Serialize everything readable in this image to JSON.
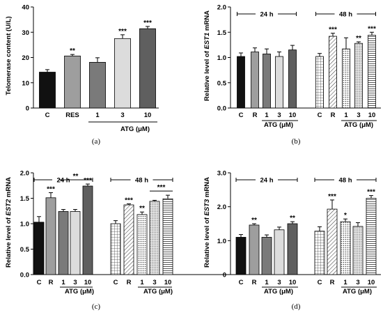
{
  "colors": {
    "black": "#111111",
    "gray_light": "#c4c4c4",
    "gray_mid": "#9e9e9e",
    "gray_dark": "#7a7a7a",
    "gray_very_light": "#dcdcdc",
    "gray_darker": "#5f5f5f",
    "pattern": "#444444"
  },
  "panels": [
    {
      "panel_label": "(a)",
      "ylabel": "Telomerase content  (U/L)",
      "ylabel_italic": "",
      "ylabel_suffix": "",
      "ticks": [
        "0",
        "10",
        "20",
        "30",
        "40"
      ],
      "categories": [
        "C",
        "RES",
        "1",
        "3",
        "10"
      ],
      "group_brackets": [],
      "atg_label": "ATG (μM)"
    },
    {
      "panel_label": "(b)",
      "ylabel": "Relative level of ",
      "ylabel_italic": "EST1",
      "ylabel_suffix": " mRNA",
      "ticks": [
        "0.0",
        "0.5",
        "1.0",
        "1.5",
        "2.0"
      ],
      "categories": [
        "C",
        "R",
        "1",
        "3",
        "10",
        "C",
        "R",
        "1",
        "3",
        "10"
      ],
      "group_brackets": [
        "24 h",
        "48 h"
      ],
      "atg_label": "ATG (μM)"
    },
    {
      "panel_label": "(c)",
      "ylabel": "Relative level of ",
      "ylabel_italic": "EST2",
      "ylabel_suffix": " mRNA",
      "ticks": [
        "0.0",
        "0.5",
        "1.0",
        "1.5",
        "2.0"
      ],
      "categories": [
        "C",
        "R",
        "1",
        "3",
        "10",
        "C",
        "R",
        "1",
        "3",
        "10"
      ],
      "group_brackets": [
        "24 h",
        "48 h"
      ],
      "atg_label": "ATG (μM)"
    },
    {
      "panel_label": "(d)",
      "ylabel": "Relative level of ",
      "ylabel_italic": "EST3",
      "ylabel_suffix": " mRNA",
      "ticks": [
        "0",
        "1.0",
        "2.0",
        "3.0"
      ],
      "categories": [
        "C",
        "R",
        "1",
        "3",
        "10",
        "C",
        "R",
        "1",
        "3",
        "10"
      ],
      "group_brackets": [
        "24 h",
        "48 h"
      ],
      "atg_label": "ATG (μM)"
    }
  ],
  "chart_data": [
    {
      "type": "bar",
      "ylabel": "Telomerase content  (U/L)",
      "xlabel": "ATG (μM)",
      "ylim": [
        0,
        40
      ],
      "categories": [
        "C",
        "RES",
        "1",
        "3",
        "10"
      ],
      "values": [
        14.2,
        20.6,
        18.1,
        27.5,
        31.4
      ],
      "errors": [
        1.0,
        0.6,
        1.8,
        1.5,
        0.9
      ],
      "significance": [
        "",
        "**",
        "",
        "***",
        "***"
      ],
      "fills": [
        "black",
        "gray_mid",
        "gray_dark",
        "gray_very_light",
        "gray_darker"
      ]
    },
    {
      "type": "bar",
      "ylabel": "Relative level of EST1 mRNA",
      "xlabel": "ATG (μM)",
      "ylim": [
        0,
        2
      ],
      "groups": [
        "24 h",
        "48 h"
      ],
      "categories": [
        "C",
        "R",
        "1",
        "3",
        "10",
        "C",
        "R",
        "1",
        "3",
        "10"
      ],
      "values": [
        1.02,
        1.11,
        1.07,
        1.02,
        1.15,
        1.02,
        1.42,
        1.17,
        1.28,
        1.44
      ],
      "errors": [
        0.07,
        0.08,
        0.1,
        0.09,
        0.09,
        0.06,
        0.06,
        0.22,
        0.03,
        0.06
      ],
      "significance": [
        "",
        "",
        "",
        "",
        "",
        "",
        "***",
        "",
        "**",
        "***"
      ],
      "fills": [
        "black",
        "gray_mid",
        "gray_dark",
        "gray_very_light",
        "gray_darker",
        "grid",
        "diag",
        "dots",
        "dense",
        "hlines"
      ]
    },
    {
      "type": "bar",
      "ylabel": "Relative level of EST2 mRNA",
      "xlabel": "ATG (μM)",
      "ylim": [
        0,
        2
      ],
      "groups": [
        "24 h",
        "48 h"
      ],
      "categories": [
        "C",
        "R",
        "1",
        "3",
        "10",
        "C",
        "R",
        "1",
        "3",
        "10"
      ],
      "values": [
        1.03,
        1.51,
        1.24,
        1.24,
        1.74,
        1.0,
        1.37,
        1.18,
        1.44,
        1.49
      ],
      "errors": [
        0.11,
        0.1,
        0.04,
        0.04,
        0.04,
        0.06,
        0.02,
        0.05,
        0.02,
        0.07
      ],
      "significance": [
        "",
        "***",
        "",
        "",
        "***",
        "",
        "***",
        "**",
        "",
        ""
      ],
      "bracket_significance": [
        {
          "group": "24 h",
          "from": 2,
          "to": 4,
          "label": "**"
        },
        {
          "group": "48 h",
          "from": 3,
          "to": 4,
          "label": "***"
        }
      ],
      "fills": [
        "black",
        "gray_mid",
        "gray_dark",
        "gray_very_light",
        "gray_darker",
        "grid",
        "diag",
        "dots",
        "dense",
        "hlines"
      ]
    },
    {
      "type": "bar",
      "ylabel": "Relative level of EST3 mRNA",
      "xlabel": "ATG (μM)",
      "ylim": [
        0,
        3
      ],
      "groups": [
        "24 h",
        "48 h"
      ],
      "categories": [
        "C",
        "R",
        "1",
        "3",
        "10",
        "C",
        "R",
        "1",
        "3",
        "10"
      ],
      "values": [
        1.1,
        1.46,
        1.1,
        1.32,
        1.5,
        1.28,
        1.93,
        1.56,
        1.42,
        2.25
      ],
      "errors": [
        0.08,
        0.04,
        0.07,
        0.08,
        0.06,
        0.13,
        0.27,
        0.08,
        0.11,
        0.08
      ],
      "significance": [
        "",
        "**",
        "",
        "",
        "**",
        "",
        "***",
        "*",
        "",
        "***"
      ],
      "fills": [
        "black",
        "gray_mid",
        "gray_dark",
        "gray_very_light",
        "gray_darker",
        "grid",
        "diag",
        "dots",
        "dense",
        "hlines"
      ]
    }
  ]
}
